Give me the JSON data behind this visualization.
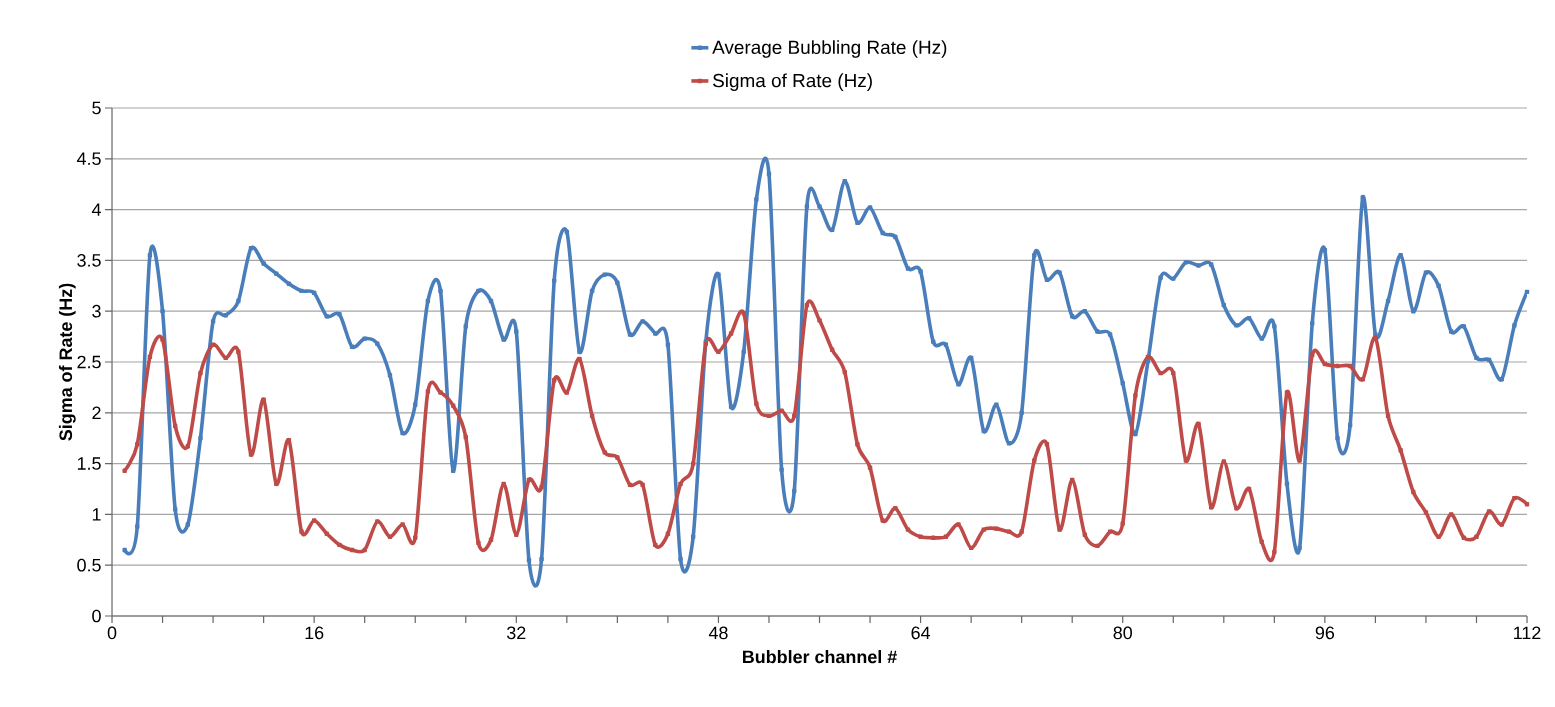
{
  "chart_data": {
    "type": "line",
    "xlabel": "Bubbler channel #",
    "ylabel": "Sigma of Rate (Hz)",
    "xlim": [
      0,
      112
    ],
    "ylim": [
      0,
      5
    ],
    "xticks": [
      0,
      {
        "value": 4,
        "label": null
      },
      {
        "value": 8,
        "label": null
      },
      {
        "value": 12,
        "label": null
      },
      16,
      {
        "value": 20,
        "label": null
      },
      {
        "value": 24,
        "label": null
      },
      {
        "value": 28,
        "label": null
      },
      32,
      {
        "value": 36,
        "label": null
      },
      {
        "value": 40,
        "label": null
      },
      {
        "value": 44,
        "label": null
      },
      48,
      {
        "value": 52,
        "label": null
      },
      {
        "value": 56,
        "label": null
      },
      {
        "value": 60,
        "label": null
      },
      64,
      {
        "value": 68,
        "label": null
      },
      {
        "value": 72,
        "label": null
      },
      {
        "value": 76,
        "label": null
      },
      80,
      {
        "value": 84,
        "label": null
      },
      {
        "value": 88,
        "label": null
      },
      {
        "value": 92,
        "label": null
      },
      96,
      {
        "value": 100,
        "label": null
      },
      {
        "value": 104,
        "label": null
      },
      {
        "value": 108,
        "label": null
      },
      112
    ],
    "yticks": [
      0,
      0.5,
      1,
      1.5,
      2,
      2.5,
      3,
      3.5,
      4,
      4.5,
      5
    ],
    "grid": "y",
    "legend": "top",
    "marker": "cross",
    "line_style": "solid",
    "x": [
      1,
      2,
      3,
      4,
      5,
      6,
      7,
      8,
      9,
      10,
      11,
      12,
      13,
      14,
      15,
      16,
      17,
      18,
      19,
      20,
      21,
      22,
      23,
      24,
      25,
      26,
      27,
      28,
      29,
      30,
      31,
      32,
      33,
      34,
      35,
      36,
      37,
      38,
      39,
      40,
      41,
      42,
      43,
      44,
      45,
      46,
      47,
      48,
      49,
      50,
      51,
      52,
      53,
      54,
      55,
      56,
      57,
      58,
      59,
      60,
      61,
      62,
      63,
      64,
      65,
      66,
      67,
      68,
      69,
      70,
      71,
      72,
      73,
      74,
      75,
      76,
      77,
      78,
      79,
      80,
      81,
      82,
      83,
      84,
      85,
      86,
      87,
      88,
      89,
      90,
      91,
      92,
      93,
      94,
      95,
      96,
      97,
      98,
      99,
      100,
      101,
      102,
      103,
      104,
      105,
      106,
      107,
      108,
      109,
      110,
      111,
      112
    ],
    "series": [
      {
        "name": "Average Bubbling  Rate (Hz)",
        "color": "#4a7ebb",
        "values": [
          0.65,
          0.88,
          3.55,
          3.0,
          1.05,
          0.9,
          1.75,
          2.9,
          2.96,
          3.1,
          3.62,
          3.47,
          3.37,
          3.27,
          3.2,
          3.18,
          2.95,
          2.97,
          2.65,
          2.73,
          2.68,
          2.37,
          1.8,
          2.08,
          3.1,
          3.2,
          1.43,
          2.85,
          3.2,
          3.1,
          2.72,
          2.8,
          0.55,
          0.56,
          3.3,
          3.78,
          2.6,
          3.2,
          3.36,
          3.28,
          2.77,
          2.9,
          2.78,
          2.67,
          0.56,
          0.78,
          2.7,
          3.36,
          2.06,
          2.6,
          4.1,
          4.35,
          1.44,
          1.23,
          4.03,
          4.03,
          3.8,
          4.28,
          3.87,
          4.02,
          3.77,
          3.73,
          3.42,
          3.39,
          2.7,
          2.67,
          2.28,
          2.54,
          1.82,
          2.08,
          1.7,
          2.0,
          3.55,
          3.31,
          3.38,
          2.95,
          3.0,
          2.8,
          2.77,
          2.29,
          1.79,
          2.51,
          3.33,
          3.32,
          3.48,
          3.45,
          3.46,
          3.06,
          2.86,
          2.93,
          2.73,
          2.85,
          1.3,
          0.67,
          2.88,
          3.6,
          1.75,
          1.88,
          4.12,
          2.77,
          3.1,
          3.55,
          3.0,
          3.38,
          3.25,
          2.8,
          2.85,
          2.54,
          2.52,
          2.33,
          2.86,
          3.19
        ]
      },
      {
        "name": "Sigma of Rate (Hz)",
        "color": "#be4b48",
        "values": [
          1.43,
          1.69,
          2.55,
          2.72,
          1.87,
          1.67,
          2.39,
          2.67,
          2.54,
          2.6,
          1.59,
          2.13,
          1.3,
          1.73,
          0.83,
          0.94,
          0.81,
          0.7,
          0.65,
          0.65,
          0.93,
          0.78,
          0.9,
          0.77,
          2.21,
          2.2,
          2.07,
          1.76,
          0.72,
          0.75,
          1.3,
          0.8,
          1.34,
          1.27,
          2.32,
          2.2,
          2.53,
          1.97,
          1.61,
          1.56,
          1.29,
          1.29,
          0.7,
          0.81,
          1.3,
          1.5,
          2.68,
          2.6,
          2.78,
          2.98,
          2.09,
          1.97,
          2.02,
          1.97,
          3.06,
          2.91,
          2.62,
          2.4,
          1.69,
          1.46,
          0.94,
          1.06,
          0.85,
          0.78,
          0.77,
          0.78,
          0.9,
          0.67,
          0.85,
          0.86,
          0.83,
          0.83,
          1.53,
          1.69,
          0.85,
          1.34,
          0.8,
          0.69,
          0.83,
          0.91,
          2.17,
          2.55,
          2.39,
          2.39,
          1.53,
          1.89,
          1.07,
          1.52,
          1.06,
          1.25,
          0.73,
          0.63,
          2.2,
          1.53,
          2.57,
          2.48,
          2.46,
          2.46,
          2.33,
          2.74,
          1.97,
          1.63,
          1.22,
          1.02,
          0.78,
          1.0,
          0.77,
          0.78,
          1.03,
          0.9,
          1.16,
          1.1
        ]
      }
    ]
  }
}
